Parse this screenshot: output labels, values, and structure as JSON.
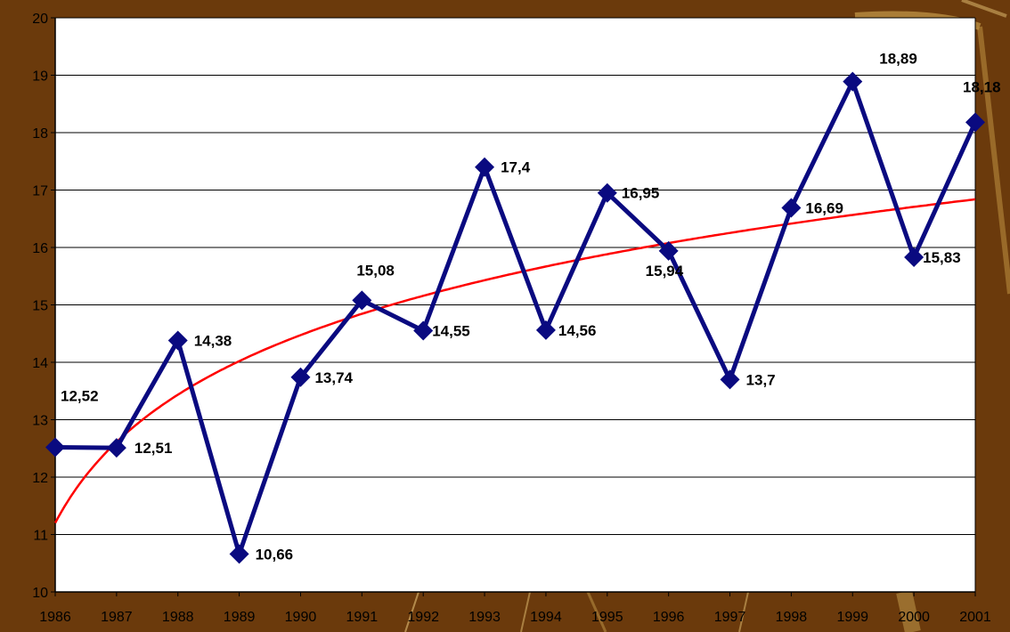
{
  "chart_data": {
    "type": "line",
    "x": [
      "1986",
      "1987",
      "1988",
      "1989",
      "1990",
      "1991",
      "1992",
      "1993",
      "1994",
      "1995",
      "1996",
      "1997",
      "1998",
      "1999",
      "2000",
      "2001"
    ],
    "series": [
      {
        "values": [
          12.52,
          12.51,
          14.38,
          10.66,
          13.74,
          15.08,
          14.55,
          17.4,
          14.56,
          16.95,
          15.94,
          13.7,
          16.69,
          18.89,
          15.83,
          18.18
        ],
        "labels": [
          "12,52",
          "12,51",
          "14,38",
          "10,66",
          "13,74",
          "15,08",
          "14,55",
          "17,4",
          "14,56",
          "16,95",
          "15,94",
          "13,7",
          "16,69",
          "18,89",
          "15,83",
          "18,18"
        ],
        "color": "#0a0a80",
        "marker": "diamond"
      }
    ],
    "trendline": {
      "type": "logarithmic",
      "color": "#ff0000"
    },
    "yticks": [
      "10",
      "11",
      "12",
      "13",
      "14",
      "15",
      "16",
      "17",
      "18",
      "19",
      "20"
    ],
    "ylim": [
      10,
      20
    ],
    "title": "",
    "xlabel": "",
    "ylabel": "",
    "grid": "horizontal",
    "legend": "none"
  },
  "colors": {
    "background": "#6b3a0c",
    "plot_area": "#ffffff",
    "gridline": "#000000",
    "decor_stroke": "#c8a35a"
  }
}
